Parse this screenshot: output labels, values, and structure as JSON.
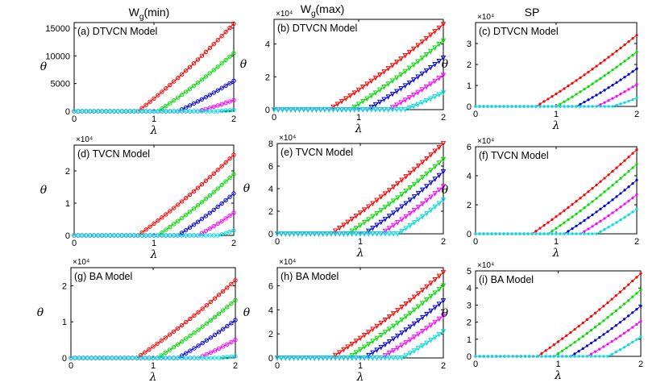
{
  "column_titles": [
    {
      "main": "W",
      "sub": "g",
      "rest": "(min)"
    },
    {
      "main": "W",
      "sub": "g",
      "rest": "(max)"
    },
    {
      "main": "SP",
      "sub": "",
      "rest": ""
    }
  ],
  "chart_data": [
    {
      "type": "line",
      "panel": "a",
      "title": "(a) DTVCN Model",
      "xlabel": "λ",
      "ylabel": "θ",
      "multiplier": "",
      "xlim": [
        0,
        2
      ],
      "ylim": [
        0,
        16000
      ],
      "xticks": [
        0,
        1,
        2
      ],
      "yticks": [
        0,
        5000,
        10000,
        15000
      ],
      "ytick_labels": [
        "0",
        "5000",
        "10000",
        "15000"
      ],
      "marker": "circle",
      "series": [
        {
          "color": "#ff0000",
          "onset": 0.8,
          "end": 15800
        },
        {
          "color": "#00dd00",
          "onset": 1.05,
          "end": 10500
        },
        {
          "color": "#0000dd",
          "onset": 1.3,
          "end": 5500
        },
        {
          "color": "#ff00ff",
          "onset": 1.55,
          "end": 2000
        },
        {
          "color": "#00dddd",
          "onset": 1.8,
          "end": 250
        }
      ]
    },
    {
      "type": "line",
      "panel": "b",
      "title": "(b) DTVCN Model",
      "xlabel": "λ",
      "ylabel": "θ",
      "multiplier": "×10⁴",
      "xlim": [
        0,
        2
      ],
      "ylim": [
        0,
        5.5
      ],
      "xticks": [
        0,
        1,
        2
      ],
      "yticks": [
        0,
        2,
        4
      ],
      "ytick_labels": [
        "0",
        "2",
        "4"
      ],
      "marker": "triangle",
      "series": [
        {
          "color": "#ff0000",
          "onset": 0.65,
          "end": 5.2
        },
        {
          "color": "#00dd00",
          "onset": 0.9,
          "end": 4.2
        },
        {
          "color": "#0000dd",
          "onset": 1.1,
          "end": 3.15
        },
        {
          "color": "#ff00ff",
          "onset": 1.35,
          "end": 2.1
        },
        {
          "color": "#00dddd",
          "onset": 1.55,
          "end": 1.05
        }
      ]
    },
    {
      "type": "line",
      "panel": "c",
      "title": "(c) DTVCN Model",
      "xlabel": "λ",
      "ylabel": "θ",
      "multiplier": "×10⁴",
      "xlim": [
        0,
        2
      ],
      "ylim": [
        0,
        4
      ],
      "xticks": [
        0,
        1,
        2
      ],
      "yticks": [
        0,
        1,
        2,
        3
      ],
      "ytick_labels": [
        "0",
        "1",
        "2",
        "3"
      ],
      "marker": "dot",
      "series": [
        {
          "color": "#ff0000",
          "onset": 0.75,
          "end": 3.4
        },
        {
          "color": "#00dd00",
          "onset": 1.0,
          "end": 2.6
        },
        {
          "color": "#0000dd",
          "onset": 1.25,
          "end": 1.8
        },
        {
          "color": "#ff00ff",
          "onset": 1.5,
          "end": 1.05
        },
        {
          "color": "#00dddd",
          "onset": 1.7,
          "end": 0.4
        }
      ]
    },
    {
      "type": "line",
      "panel": "d",
      "title": "(d) TVCN Model",
      "xlabel": "λ",
      "ylabel": "θ",
      "multiplier": "×10⁴",
      "xlim": [
        0,
        2
      ],
      "ylim": [
        0,
        2.8
      ],
      "xticks": [
        0,
        1,
        2
      ],
      "yticks": [
        0,
        1,
        2
      ],
      "ytick_labels": [
        "0",
        "1",
        "2"
      ],
      "marker": "circle",
      "series": [
        {
          "color": "#ff0000",
          "onset": 0.8,
          "end": 2.5
        },
        {
          "color": "#00dd00",
          "onset": 1.05,
          "end": 1.9
        },
        {
          "color": "#0000dd",
          "onset": 1.3,
          "end": 1.3
        },
        {
          "color": "#ff00ff",
          "onset": 1.55,
          "end": 0.7
        },
        {
          "color": "#00dddd",
          "onset": 1.8,
          "end": 0.15
        }
      ]
    },
    {
      "type": "line",
      "panel": "e",
      "title": "(e) TVCN Model",
      "xlabel": "λ",
      "ylabel": "θ",
      "multiplier": "×10⁴",
      "xlim": [
        0,
        2
      ],
      "ylim": [
        0,
        8
      ],
      "xticks": [
        0,
        1,
        2
      ],
      "yticks": [
        0,
        2,
        4,
        6,
        8
      ],
      "ytick_labels": [
        "0",
        "2",
        "4",
        "6",
        "8"
      ],
      "marker": "triangle",
      "series": [
        {
          "color": "#ff0000",
          "onset": 0.65,
          "end": 8.0
        },
        {
          "color": "#00dd00",
          "onset": 0.85,
          "end": 6.6
        },
        {
          "color": "#0000dd",
          "onset": 1.05,
          "end": 5.5
        },
        {
          "color": "#ff00ff",
          "onset": 1.25,
          "end": 4.2
        },
        {
          "color": "#00dddd",
          "onset": 1.45,
          "end": 3.0
        }
      ]
    },
    {
      "type": "line",
      "panel": "f",
      "title": "(f) TVCN Model",
      "xlabel": "λ",
      "ylabel": "θ",
      "multiplier": "×10⁴",
      "xlim": [
        0,
        2
      ],
      "ylim": [
        0,
        6
      ],
      "xticks": [
        0,
        1,
        2
      ],
      "yticks": [
        0,
        2,
        4,
        6
      ],
      "ytick_labels": [
        "0",
        "2",
        "4",
        "6"
      ],
      "marker": "dot",
      "series": [
        {
          "color": "#ff0000",
          "onset": 0.7,
          "end": 5.8
        },
        {
          "color": "#00dd00",
          "onset": 0.9,
          "end": 4.8
        },
        {
          "color": "#0000dd",
          "onset": 1.1,
          "end": 3.7
        },
        {
          "color": "#ff00ff",
          "onset": 1.3,
          "end": 2.7
        },
        {
          "color": "#00dddd",
          "onset": 1.5,
          "end": 1.7
        }
      ]
    },
    {
      "type": "line",
      "panel": "g",
      "title": "(g) BA Model",
      "xlabel": "λ",
      "ylabel": "θ",
      "multiplier": "×10⁴",
      "xlim": [
        0,
        2
      ],
      "ylim": [
        0,
        2.5
      ],
      "xticks": [
        0,
        1,
        2
      ],
      "yticks": [
        0,
        1,
        2
      ],
      "ytick_labels": [
        "0",
        "1",
        "2"
      ],
      "marker": "circle",
      "series": [
        {
          "color": "#ff0000",
          "onset": 0.8,
          "end": 2.15
        },
        {
          "color": "#00dd00",
          "onset": 1.05,
          "end": 1.6
        },
        {
          "color": "#0000dd",
          "onset": 1.3,
          "end": 1.05
        },
        {
          "color": "#ff00ff",
          "onset": 1.55,
          "end": 0.5
        },
        {
          "color": "#00dddd",
          "onset": 1.8,
          "end": 0.05
        }
      ]
    },
    {
      "type": "line",
      "panel": "h",
      "title": "(h) BA Model",
      "xlabel": "λ",
      "ylabel": "θ",
      "multiplier": "×10⁴",
      "xlim": [
        0,
        2
      ],
      "ylim": [
        0,
        7.5
      ],
      "xticks": [
        0,
        1,
        2
      ],
      "yticks": [
        0,
        2,
        4,
        6
      ],
      "ytick_labels": [
        "0",
        "2",
        "4",
        "6"
      ],
      "marker": "triangle",
      "series": [
        {
          "color": "#ff0000",
          "onset": 0.65,
          "end": 7.1
        },
        {
          "color": "#00dd00",
          "onset": 0.85,
          "end": 6.0
        },
        {
          "color": "#0000dd",
          "onset": 1.05,
          "end": 4.75
        },
        {
          "color": "#ff00ff",
          "onset": 1.25,
          "end": 3.5
        },
        {
          "color": "#00dddd",
          "onset": 1.5,
          "end": 2.2
        }
      ]
    },
    {
      "type": "line",
      "panel": "i",
      "title": "(i) BA Model",
      "xlabel": "λ",
      "ylabel": "θ",
      "multiplier": "×10⁴",
      "xlim": [
        0,
        2
      ],
      "ylim": [
        0,
        5
      ],
      "xticks": [
        0,
        1,
        2
      ],
      "yticks": [
        0,
        1,
        2,
        3,
        4,
        5
      ],
      "ytick_labels": [
        "0",
        "1",
        "2",
        "3",
        "4",
        "5"
      ],
      "marker": "dot",
      "series": [
        {
          "color": "#ff0000",
          "onset": 0.75,
          "end": 4.85
        },
        {
          "color": "#00dd00",
          "onset": 0.95,
          "end": 3.9
        },
        {
          "color": "#0000dd",
          "onset": 1.15,
          "end": 2.95
        },
        {
          "color": "#ff00ff",
          "onset": 1.35,
          "end": 2.05
        },
        {
          "color": "#00dddd",
          "onset": 1.6,
          "end": 1.15
        }
      ]
    }
  ]
}
